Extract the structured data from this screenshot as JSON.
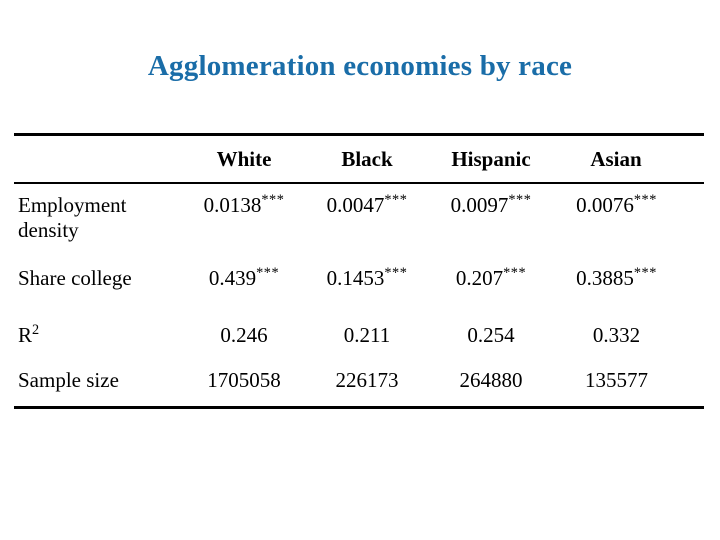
{
  "slide": {
    "title": "Agglomeration economies by race"
  },
  "colors": {
    "title_blue": "#1a6da8",
    "text": "#000000",
    "rule": "#000000",
    "background": "#ffffff"
  },
  "chart_data": {
    "type": "table",
    "title": "Agglomeration economies by race",
    "columns": [
      "",
      "White",
      "Black",
      "Hispanic",
      "Asian"
    ],
    "rows": [
      {
        "label": "Employment density",
        "values": [
          "0.0138***",
          "0.0047***",
          "0.0097***",
          "0.0076***"
        ]
      },
      {
        "label": "Share college",
        "values": [
          "0.439***",
          "0.1453***",
          "0.207***",
          "0.3885***"
        ]
      },
      {
        "label": "R2",
        "values": [
          "0.246",
          "0.211",
          "0.254",
          "0.332"
        ]
      },
      {
        "label": "Sample size",
        "values": [
          "1705058",
          "226173",
          "264880",
          "135577"
        ]
      }
    ]
  },
  "table": {
    "headers": {
      "corner": "",
      "white": "White",
      "black": "Black",
      "hispanic": "Hispanic",
      "asian": "Asian"
    },
    "rows": [
      {
        "label": "Employment density",
        "label_sup": "",
        "cells": [
          {
            "value": "0.0138",
            "stars": "***"
          },
          {
            "value": "0.0047",
            "stars": "***"
          },
          {
            "value": "0.0097",
            "stars": "***"
          },
          {
            "value": "0.0076",
            "stars": "***"
          }
        ]
      },
      {
        "label": "Share college",
        "label_sup": "",
        "cells": [
          {
            "value": "0.439",
            "stars": "***"
          },
          {
            "value": "0.1453",
            "stars": "***"
          },
          {
            "value": "0.207",
            "stars": "***"
          },
          {
            "value": "0.3885",
            "stars": "***"
          }
        ]
      },
      {
        "label": "R",
        "label_sup": "2",
        "cells": [
          {
            "value": "0.246",
            "stars": ""
          },
          {
            "value": "0.211",
            "stars": ""
          },
          {
            "value": "0.254",
            "stars": ""
          },
          {
            "value": "0.332",
            "stars": ""
          }
        ]
      },
      {
        "label": "Sample size",
        "label_sup": "",
        "cells": [
          {
            "value": "1705058",
            "stars": ""
          },
          {
            "value": "226173",
            "stars": ""
          },
          {
            "value": "264880",
            "stars": ""
          },
          {
            "value": "135577",
            "stars": ""
          }
        ]
      }
    ]
  }
}
